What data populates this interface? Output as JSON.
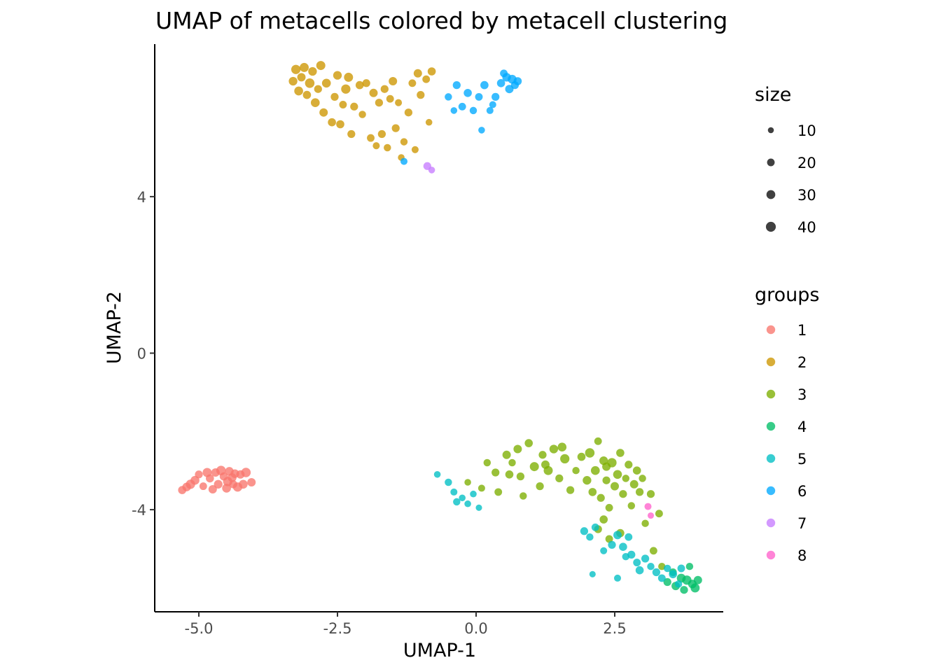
{
  "chart_data": {
    "type": "scatter",
    "title": "UMAP of metacells colored by metacell clustering",
    "xlabel": "UMAP-1",
    "ylabel": "UMAP-2",
    "xlim": [
      -5.8,
      4.5
    ],
    "ylim": [
      -6.6,
      7.9
    ],
    "x_ticks": [
      -5.0,
      -2.5,
      0.0,
      2.5
    ],
    "x_tick_labels": [
      "-5.0",
      "-2.5",
      "0.0",
      "2.5"
    ],
    "y_ticks": [
      4,
      0,
      -4
    ],
    "y_tick_labels": [
      "4",
      "0",
      "-4"
    ],
    "grid": false,
    "legend_position": "right",
    "size_legend": {
      "title": "size",
      "values": [
        10,
        20,
        30,
        40
      ],
      "labels": [
        "10",
        "20",
        "30",
        "40"
      ]
    },
    "group_legend": {
      "title": "groups",
      "labels": [
        "1",
        "2",
        "3",
        "4",
        "5",
        "6",
        "7",
        "8"
      ],
      "colors": [
        "#F8766D",
        "#CD9600",
        "#7CAE00",
        "#00BE67",
        "#00BFC4",
        "#00A9FF",
        "#C77CFF",
        "#FF61CC"
      ]
    },
    "series": [
      {
        "name": "1",
        "points": [
          [
            -5.3,
            -3.5,
            24
          ],
          [
            -5.22,
            -3.42,
            28
          ],
          [
            -5.15,
            -3.35,
            34
          ],
          [
            -5.07,
            -3.25,
            30
          ],
          [
            -5.0,
            -3.1,
            22
          ],
          [
            -4.92,
            -3.4,
            20
          ],
          [
            -4.85,
            -3.05,
            32
          ],
          [
            -4.8,
            -3.2,
            24
          ],
          [
            -4.75,
            -3.48,
            26
          ],
          [
            -4.7,
            -3.05,
            26
          ],
          [
            -4.65,
            -3.35,
            28
          ],
          [
            -4.6,
            -3.0,
            36
          ],
          [
            -4.55,
            -3.15,
            24
          ],
          [
            -4.5,
            -3.45,
            30
          ],
          [
            -4.48,
            -3.28,
            34
          ],
          [
            -4.45,
            -3.02,
            28
          ],
          [
            -4.4,
            -3.18,
            30
          ],
          [
            -4.38,
            -3.35,
            24
          ],
          [
            -4.35,
            -3.08,
            28
          ],
          [
            -4.3,
            -3.42,
            34
          ],
          [
            -4.25,
            -3.1,
            26
          ],
          [
            -4.2,
            -3.35,
            30
          ],
          [
            -4.15,
            -3.05,
            36
          ],
          [
            -4.05,
            -3.3,
            26
          ]
        ]
      },
      {
        "name": "2",
        "points": [
          [
            -3.3,
            6.95,
            28
          ],
          [
            -3.25,
            7.25,
            34
          ],
          [
            -3.2,
            6.7,
            30
          ],
          [
            -3.15,
            7.05,
            26
          ],
          [
            -3.1,
            7.3,
            32
          ],
          [
            -3.05,
            6.6,
            24
          ],
          [
            -3.0,
            6.9,
            36
          ],
          [
            -2.95,
            7.2,
            28
          ],
          [
            -2.9,
            6.4,
            30
          ],
          [
            -2.85,
            6.75,
            22
          ],
          [
            -2.8,
            7.35,
            32
          ],
          [
            -2.75,
            6.15,
            26
          ],
          [
            -2.7,
            6.9,
            30
          ],
          [
            -2.6,
            5.9,
            24
          ],
          [
            -2.55,
            6.55,
            22
          ],
          [
            -2.5,
            7.1,
            28
          ],
          [
            -2.45,
            5.85,
            24
          ],
          [
            -2.4,
            6.35,
            20
          ],
          [
            -2.35,
            6.75,
            34
          ],
          [
            -2.3,
            7.05,
            32
          ],
          [
            -2.25,
            5.6,
            22
          ],
          [
            -2.2,
            6.3,
            22
          ],
          [
            -2.1,
            6.85,
            24
          ],
          [
            -2.05,
            6.1,
            18
          ],
          [
            -1.98,
            6.9,
            22
          ],
          [
            -1.9,
            5.5,
            20
          ],
          [
            -1.85,
            6.65,
            26
          ],
          [
            -1.8,
            5.3,
            16
          ],
          [
            -1.75,
            6.4,
            22
          ],
          [
            -1.7,
            5.6,
            22
          ],
          [
            -1.65,
            6.75,
            22
          ],
          [
            -1.6,
            5.25,
            18
          ],
          [
            -1.55,
            6.5,
            20
          ],
          [
            -1.5,
            6.95,
            26
          ],
          [
            -1.45,
            5.75,
            22
          ],
          [
            -1.4,
            6.4,
            16
          ],
          [
            -1.35,
            5.0,
            14
          ],
          [
            -1.3,
            5.4,
            18
          ],
          [
            -1.22,
            6.15,
            22
          ],
          [
            -1.15,
            6.9,
            20
          ],
          [
            -1.1,
            5.2,
            16
          ],
          [
            -1.05,
            7.15,
            26
          ],
          [
            -1.0,
            6.6,
            22
          ],
          [
            -0.9,
            7.0,
            20
          ],
          [
            -0.85,
            5.9,
            14
          ],
          [
            -0.8,
            7.2,
            24
          ]
        ]
      },
      {
        "name": "3",
        "points": [
          [
            -0.15,
            -3.3,
            14
          ],
          [
            0.2,
            -2.8,
            18
          ],
          [
            0.35,
            -3.05,
            22
          ],
          [
            0.4,
            -3.55,
            20
          ],
          [
            0.55,
            -2.6,
            26
          ],
          [
            0.6,
            -3.1,
            24
          ],
          [
            0.65,
            -2.8,
            18
          ],
          [
            0.75,
            -2.45,
            26
          ],
          [
            0.8,
            -3.15,
            22
          ],
          [
            0.85,
            -3.65,
            18
          ],
          [
            0.95,
            -2.3,
            24
          ],
          [
            1.05,
            -2.9,
            32
          ],
          [
            1.15,
            -3.4,
            22
          ],
          [
            1.2,
            -2.6,
            22
          ],
          [
            1.3,
            -3.0,
            32
          ],
          [
            1.4,
            -2.45,
            28
          ],
          [
            1.5,
            -3.2,
            22
          ],
          [
            1.6,
            -2.7,
            34
          ],
          [
            1.7,
            -3.5,
            22
          ],
          [
            1.8,
            -3.0,
            18
          ],
          [
            1.9,
            -2.65,
            24
          ],
          [
            2.0,
            -3.25,
            28
          ],
          [
            2.05,
            -2.55,
            36
          ],
          [
            2.1,
            -3.55,
            24
          ],
          [
            2.15,
            -3.0,
            30
          ],
          [
            2.2,
            -2.25,
            20
          ],
          [
            2.25,
            -3.7,
            22
          ],
          [
            2.3,
            -2.75,
            28
          ],
          [
            2.35,
            -3.25,
            22
          ],
          [
            2.4,
            -3.95,
            20
          ],
          [
            2.45,
            -2.8,
            34
          ],
          [
            2.5,
            -3.4,
            26
          ],
          [
            2.55,
            -3.1,
            30
          ],
          [
            2.6,
            -2.55,
            24
          ],
          [
            2.65,
            -3.6,
            22
          ],
          [
            2.7,
            -3.2,
            18
          ],
          [
            2.75,
            -2.85,
            22
          ],
          [
            2.8,
            -3.9,
            18
          ],
          [
            2.85,
            -3.35,
            26
          ],
          [
            2.9,
            -3.0,
            24
          ],
          [
            2.95,
            -3.55,
            22
          ],
          [
            3.0,
            -3.2,
            18
          ],
          [
            3.05,
            -4.35,
            18
          ],
          [
            3.15,
            -3.6,
            22
          ],
          [
            3.3,
            -4.1,
            20
          ],
          [
            2.2,
            -4.5,
            22
          ],
          [
            2.3,
            -4.25,
            24
          ],
          [
            2.4,
            -4.75,
            20
          ],
          [
            2.6,
            -4.6,
            24
          ],
          [
            3.2,
            -5.05,
            20
          ],
          [
            3.35,
            -5.45,
            18
          ],
          [
            1.55,
            -2.4,
            30
          ],
          [
            2.35,
            -2.9,
            26
          ],
          [
            1.25,
            -2.85,
            26
          ],
          [
            0.1,
            -3.45,
            16
          ]
        ]
      },
      {
        "name": "4",
        "points": [
          [
            3.45,
            -5.85,
            22
          ],
          [
            3.55,
            -5.6,
            20
          ],
          [
            3.6,
            -5.95,
            26
          ],
          [
            3.7,
            -5.75,
            30
          ],
          [
            3.75,
            -6.05,
            22
          ],
          [
            3.8,
            -5.8,
            34
          ],
          [
            3.85,
            -5.45,
            18
          ],
          [
            3.9,
            -5.9,
            28
          ],
          [
            3.95,
            -6.0,
            32
          ],
          [
            4.0,
            -5.8,
            26
          ]
        ]
      },
      {
        "name": "5",
        "points": [
          [
            -0.7,
            -3.1,
            14
          ],
          [
            -0.5,
            -3.3,
            18
          ],
          [
            -0.4,
            -3.55,
            16
          ],
          [
            -0.35,
            -3.8,
            18
          ],
          [
            -0.25,
            -3.7,
            14
          ],
          [
            -0.15,
            -3.85,
            14
          ],
          [
            -0.05,
            -3.6,
            14
          ],
          [
            0.05,
            -3.95,
            12
          ],
          [
            1.95,
            -4.55,
            22
          ],
          [
            2.05,
            -4.7,
            18
          ],
          [
            2.15,
            -4.45,
            20
          ],
          [
            2.3,
            -5.05,
            16
          ],
          [
            2.45,
            -4.9,
            22
          ],
          [
            2.55,
            -4.65,
            26
          ],
          [
            2.65,
            -4.95,
            24
          ],
          [
            2.7,
            -5.2,
            18
          ],
          [
            2.8,
            -5.15,
            22
          ],
          [
            2.9,
            -5.35,
            20
          ],
          [
            2.95,
            -5.55,
            24
          ],
          [
            3.05,
            -5.25,
            22
          ],
          [
            3.15,
            -5.45,
            18
          ],
          [
            3.25,
            -5.6,
            22
          ],
          [
            3.35,
            -5.75,
            20
          ],
          [
            3.45,
            -5.5,
            18
          ],
          [
            3.55,
            -5.65,
            24
          ],
          [
            3.65,
            -5.9,
            18
          ],
          [
            3.7,
            -5.5,
            20
          ],
          [
            2.75,
            -4.7,
            20
          ],
          [
            2.55,
            -5.75,
            16
          ],
          [
            2.1,
            -5.65,
            12
          ]
        ]
      },
      {
        "name": "6",
        "points": [
          [
            -0.5,
            6.55,
            18
          ],
          [
            -0.35,
            6.85,
            22
          ],
          [
            -0.25,
            6.3,
            20
          ],
          [
            -0.15,
            6.65,
            24
          ],
          [
            -0.05,
            6.2,
            18
          ],
          [
            0.05,
            6.55,
            20
          ],
          [
            0.15,
            6.85,
            24
          ],
          [
            0.25,
            6.2,
            16
          ],
          [
            0.35,
            6.55,
            22
          ],
          [
            0.45,
            6.9,
            24
          ],
          [
            0.55,
            7.05,
            28
          ],
          [
            0.6,
            6.75,
            26
          ],
          [
            0.65,
            7.0,
            30
          ],
          [
            0.7,
            6.85,
            22
          ],
          [
            0.75,
            6.95,
            24
          ],
          [
            0.5,
            7.15,
            20
          ],
          [
            0.1,
            5.7,
            14
          ],
          [
            -1.3,
            4.9,
            16
          ],
          [
            0.3,
            6.35,
            16
          ],
          [
            -0.4,
            6.2,
            14
          ]
        ]
      },
      {
        "name": "7",
        "points": [
          [
            -0.88,
            4.78,
            22
          ],
          [
            -0.8,
            4.68,
            14
          ]
        ]
      },
      {
        "name": "8",
        "points": [
          [
            3.1,
            -3.92,
            16
          ],
          [
            3.15,
            -4.15,
            12
          ]
        ]
      }
    ]
  }
}
